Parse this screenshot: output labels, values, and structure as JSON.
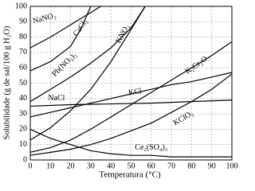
{
  "chart_data": {
    "type": "line",
    "xlabel": "Temperatura (°C)",
    "ylabel": "Solubilidade (g de sal/100 g H₂O)",
    "xlim": [
      0,
      100
    ],
    "xticks": [
      0,
      10,
      20,
      30,
      40,
      50,
      60,
      70,
      80,
      90,
      100
    ],
    "ylim": [
      0,
      100
    ],
    "yticks": [
      0,
      10,
      20,
      30,
      40,
      50,
      60,
      70,
      80,
      90,
      100
    ],
    "grid": true,
    "series": [
      {
        "name": "NaNO₃",
        "color": "#000000",
        "x": [
          0,
          10,
          20,
          30,
          35
        ],
        "values": [
          73,
          80,
          88,
          96,
          100
        ]
      },
      {
        "name": "CaCl₂",
        "color": "#000000",
        "x": [
          0,
          10,
          20,
          25,
          30
        ],
        "values": [
          58,
          64,
          74,
          85,
          100
        ]
      },
      {
        "name": "Pb(NO₃)₂",
        "color": "#000000",
        "x": [
          0,
          10,
          20,
          30,
          40,
          50,
          57
        ],
        "values": [
          38,
          46,
          54,
          63,
          73,
          86,
          100
        ]
      },
      {
        "name": "KNO₃",
        "color": "#000000",
        "x": [
          0,
          10,
          20,
          30,
          40,
          50,
          57
        ],
        "values": [
          13,
          21,
          32,
          46,
          64,
          85,
          100
        ]
      },
      {
        "name": "K₂Cr₂O₇",
        "color": "#000000",
        "x": [
          0,
          10,
          20,
          30,
          40,
          50,
          60,
          70,
          80,
          90,
          100
        ],
        "values": [
          5,
          8,
          13,
          20,
          28,
          36,
          44,
          52,
          60,
          68,
          77
        ]
      },
      {
        "name": "KCl",
        "color": "#000000",
        "x": [
          0,
          10,
          20,
          30,
          40,
          50,
          60,
          70,
          80,
          90,
          100
        ],
        "values": [
          28,
          31,
          34,
          37,
          40,
          43,
          46,
          49,
          51,
          54,
          57
        ]
      },
      {
        "name": "NaCl",
        "color": "#000000",
        "x": [
          0,
          20,
          40,
          60,
          80,
          100
        ],
        "values": [
          35,
          36,
          36.5,
          37,
          38,
          39
        ]
      },
      {
        "name": "KClO₃",
        "color": "#000000",
        "x": [
          0,
          10,
          20,
          30,
          40,
          50,
          60,
          70,
          80,
          90,
          100
        ],
        "values": [
          3,
          5,
          7,
          10,
          14,
          19,
          24,
          31,
          38,
          46,
          56
        ]
      },
      {
        "name": "Ce₂(SO₄)₃",
        "color": "#000000",
        "x": [
          0,
          10,
          20,
          30,
          40,
          50,
          60,
          70,
          80,
          90,
          100
        ],
        "values": [
          20,
          14,
          10,
          6,
          4,
          3,
          3,
          2,
          2,
          2,
          2
        ]
      }
    ]
  }
}
